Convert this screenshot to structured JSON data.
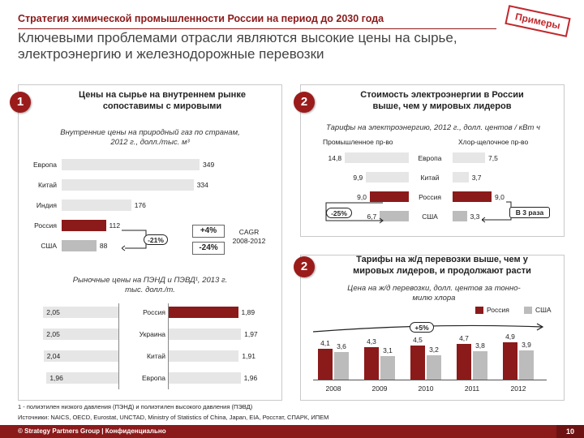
{
  "header": {
    "title": "Стратегия химической промышленности России на период до 2030 года",
    "stamp": "Примеры",
    "headline_line1": "Ключевыми проблемами отрасли являются высокие цены на сырье,",
    "headline_line2": "электроэнергию и железнодорожные перевозки"
  },
  "panel1": {
    "badge": "1",
    "title_line1": "Цены на сырье на внутреннем рынке",
    "title_line2": "сопоставимы с мировыми",
    "chart1_sub_line1": "Внутренние цены на природный газ по странам,",
    "chart1_sub_line2": "2012 г., долл./тыс. м³",
    "cagr_label_line1": "CAGR",
    "cagr_label_line2": "2008-2012",
    "cagr_russia": "+4%",
    "cagr_usa": "-24%",
    "diff_pill": "-21%",
    "chart2_sub_line1": "Рыночные цены на ПЭНД и ПЭВД¹, 2013 г.",
    "chart2_sub_line2": "тыс. долл./т."
  },
  "panel2": {
    "badge": "2",
    "title_line1": "Стоимость электроэнергии в России",
    "title_line2": "выше, чем у мировых лидеров",
    "sub": "Тарифы на электроэнергию, 2012 г., долл. центов / кВт ч",
    "left_header": "Промышленное пр-во",
    "right_header": "Хлор-щелочное пр-во",
    "diff_pill": "-25%",
    "times_box": "В 3 раза"
  },
  "panel3": {
    "badge": "2",
    "title_line1": "Тарифы на ж/д перевозки выше, чем у",
    "title_line2": "мировых лидеров, и продолжают расти",
    "sub_line1": "Цена на ж/д перевозки, долл. центов за тонно-",
    "sub_line2": "милю хлора",
    "growth_pill": "+5%"
  },
  "footnotes": {
    "note1": "1 - полиэтилен низкого давления (ПЭНД) и полиэтилен высокого давления (ПЭВД)",
    "sources": "Источники: NAICS, OECD, Eurostat, UNCTAD, Ministry of Statistics of China, Japan, EIA, Росстат, СПАРК, ИПЕМ"
  },
  "footer": {
    "copyright": "© Strategy Partners Group | Конфиденциально",
    "page": "10"
  },
  "colors": {
    "accent": "#8b1a1a",
    "gray": "#bcbcbc",
    "light": "#e6e6e6"
  },
  "chart_data": [
    {
      "type": "bar",
      "orientation": "horizontal",
      "categories": [
        "Европа",
        "Китай",
        "Индия",
        "Россия",
        "США"
      ],
      "values": [
        349,
        334,
        176,
        112,
        88
      ],
      "highlight": [
        "",
        "",
        "",
        "red",
        "gray"
      ]
    },
    {
      "type": "bar",
      "orientation": "horizontal-butterfly",
      "categories": [
        "Россия",
        "Украина",
        "Китай",
        "Европа"
      ],
      "series": [
        {
          "values": [
            2.05,
            2.05,
            2.04,
            1.96
          ],
          "labels": [
            "2,05",
            "2,05",
            "2,04",
            "1,96"
          ]
        },
        {
          "values": [
            1.89,
            1.97,
            1.91,
            1.96
          ],
          "labels": [
            "1,89",
            "1,97",
            "1,91",
            "1,96"
          ]
        }
      ]
    },
    {
      "type": "bar",
      "orientation": "horizontal-butterfly",
      "categories": [
        "Европа",
        "Китай",
        "Россия",
        "США"
      ],
      "series": [
        {
          "name": "Промышленное пр-во",
          "values": [
            14.8,
            9.9,
            9.0,
            6.7
          ],
          "labels": [
            "14,8",
            "9,9",
            "9,0",
            "6,7"
          ]
        },
        {
          "name": "Хлор-щелочное пр-во",
          "values": [
            7.5,
            3.7,
            9.0,
            3.3
          ],
          "labels": [
            "7,5",
            "3,7",
            "9,0",
            "3,3"
          ]
        }
      ]
    },
    {
      "type": "bar",
      "categories": [
        "2008",
        "2009",
        "2010",
        "2011",
        "2012"
      ],
      "series": [
        {
          "name": "Россия",
          "values": [
            4.1,
            4.3,
            4.5,
            4.7,
            4.9
          ],
          "labels": [
            "4,1",
            "4,3",
            "4,5",
            "4,7",
            "4,9"
          ]
        },
        {
          "name": "США",
          "values": [
            3.6,
            3.1,
            3.2,
            3.8,
            3.9
          ],
          "labels": [
            "3,6",
            "3,1",
            "3,2",
            "3,8",
            "3,9"
          ]
        }
      ]
    }
  ]
}
